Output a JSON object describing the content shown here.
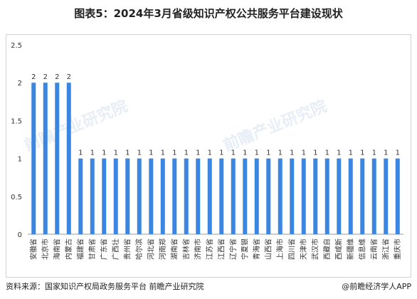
{
  "title": "图表5：2024年3月省级知识产权公共服务平台建设现状",
  "footer": {
    "source": "资料来源：国家知识产权局政务服务平台 前瞻产业研究院",
    "brand": "@前瞻经济学人APP"
  },
  "watermark": "前瞻产业研究院",
  "colors": {
    "bar": "#3a86e0",
    "grid": "#e6e6e6",
    "axis": "#999999",
    "text": "#333333"
  },
  "chart_data": {
    "type": "bar",
    "title": "图表5：2024年3月省级知识产权公共服务平台建设现状",
    "xlabel": "",
    "ylabel": "",
    "ylim": [
      0,
      2.5
    ],
    "yticks": [
      "0",
      "0.5",
      "1",
      "1.5",
      "2",
      "2.5"
    ],
    "grid": false,
    "categories": [
      "安徽省",
      "北京市",
      "海南省",
      "内蒙古",
      "福建省",
      "甘肃省",
      "广东省",
      "广西壮",
      "贵州省",
      "哈尔滨",
      "河北省",
      "河南郑",
      "湖南省",
      "吉林省",
      "济南市",
      "江苏省",
      "江西省",
      "辽宁省",
      "宁夏银",
      "青海省",
      "山西省",
      "上海市",
      "四川省",
      "天津市",
      "武汉市",
      "西藏自",
      "西咸新",
      "新疆维",
      "信息维",
      "云南省",
      "浙江省",
      "重庆市"
    ],
    "values": [
      2,
      2,
      2,
      2,
      1,
      1,
      1,
      1,
      1,
      1,
      1,
      1,
      1,
      1,
      1,
      1,
      1,
      1,
      1,
      1,
      1,
      1,
      1,
      1,
      1,
      1,
      1,
      1,
      1,
      1,
      1,
      1
    ]
  }
}
